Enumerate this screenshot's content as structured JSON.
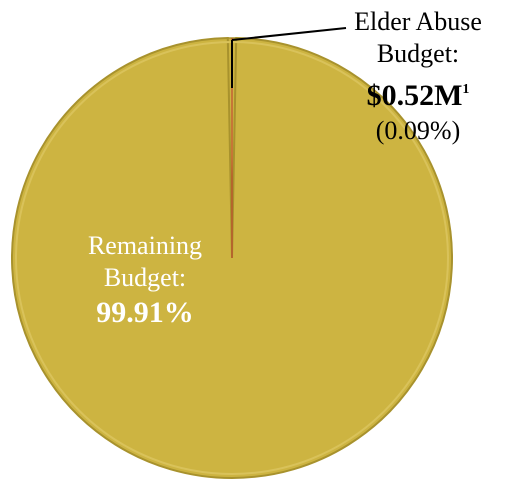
{
  "chart_data": {
    "type": "pie",
    "slices": [
      {
        "label": "Elder Abuse Budget:",
        "amount": "$0.52M",
        "footnote": "1",
        "percent_text": "(0.09%)",
        "value": 0.09
      },
      {
        "label": "Remaining Budget:",
        "percent_text": "99.91%",
        "value": 99.91
      }
    ],
    "colors": {
      "fill": "#CDB441",
      "edge": "#A8922D",
      "leader": "#000000",
      "small_slice_edge": "#C0392B"
    }
  },
  "labels": {
    "elder_line1": "Elder Abuse",
    "elder_line2": "Budget:",
    "elder_amount": "$0.52M",
    "elder_footnote": "1",
    "elder_percent": "(0.09%)",
    "remaining_line1": "Remaining",
    "remaining_line2": "Budget:",
    "remaining_percent": "99.91%"
  }
}
